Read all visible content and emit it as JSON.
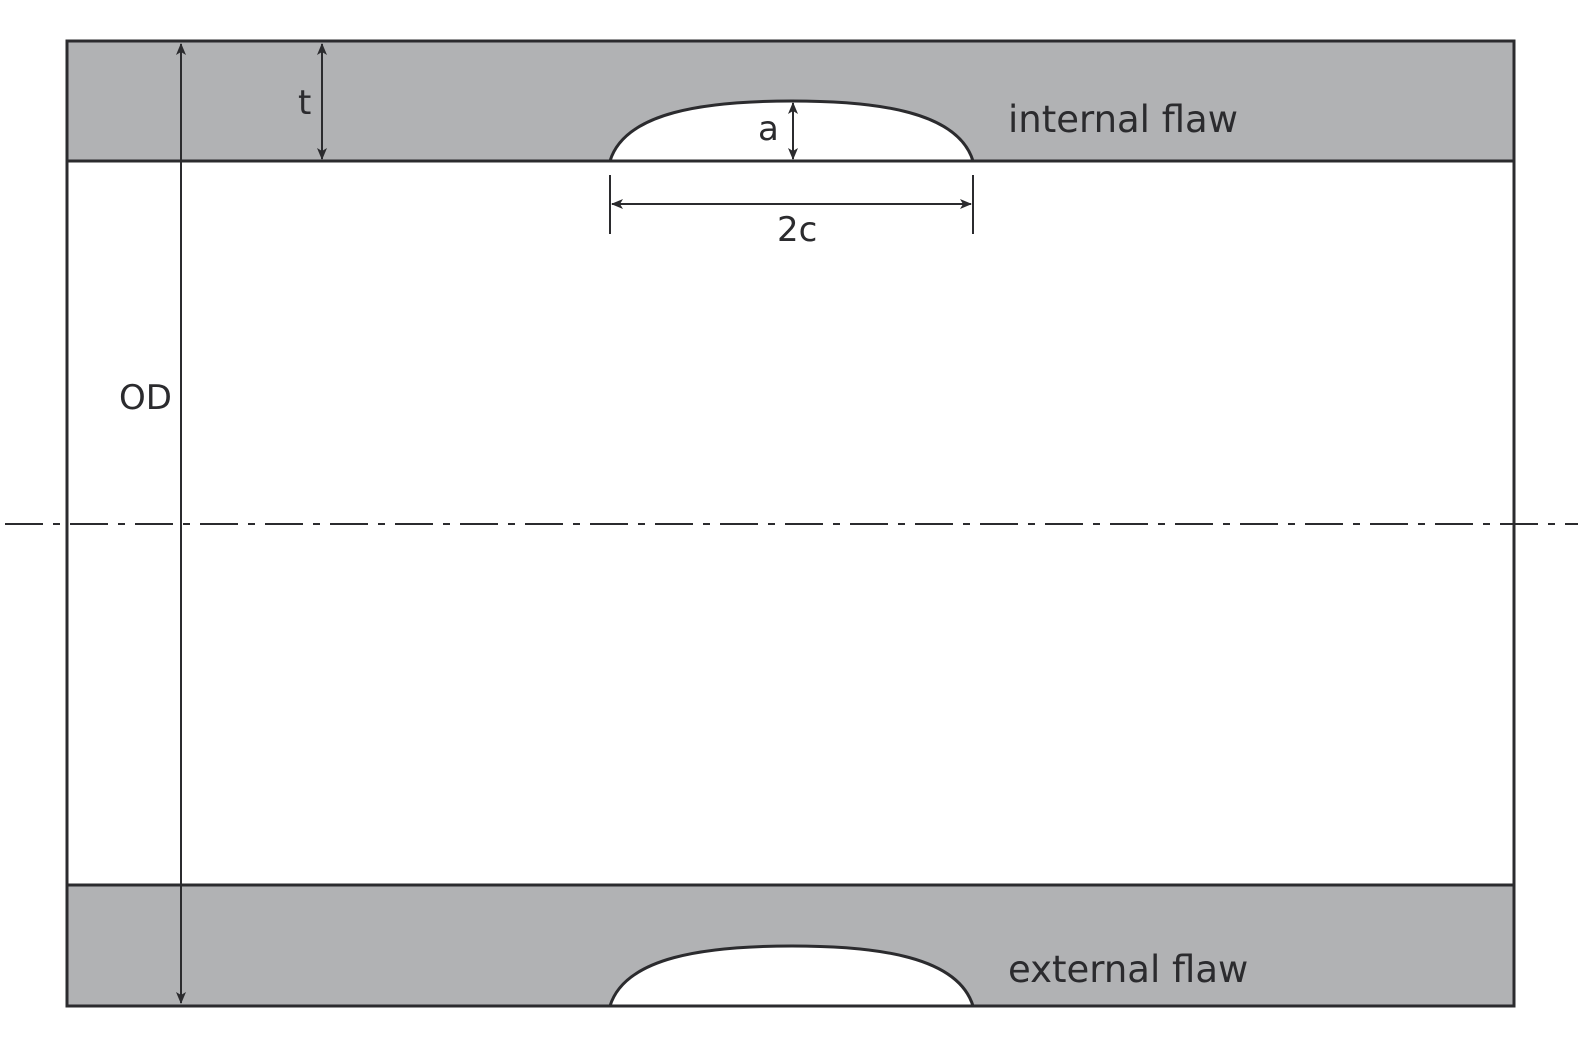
{
  "labels": {
    "thickness": "t",
    "flaw_depth": "a",
    "flaw_length": "2c",
    "outer_diameter": "OD",
    "internal_flaw": "internal flaw",
    "external_flaw": "external flaw"
  },
  "colors": {
    "wall": "#b1b2b4",
    "line": "#2b2b2e",
    "background": "#ffffff"
  }
}
